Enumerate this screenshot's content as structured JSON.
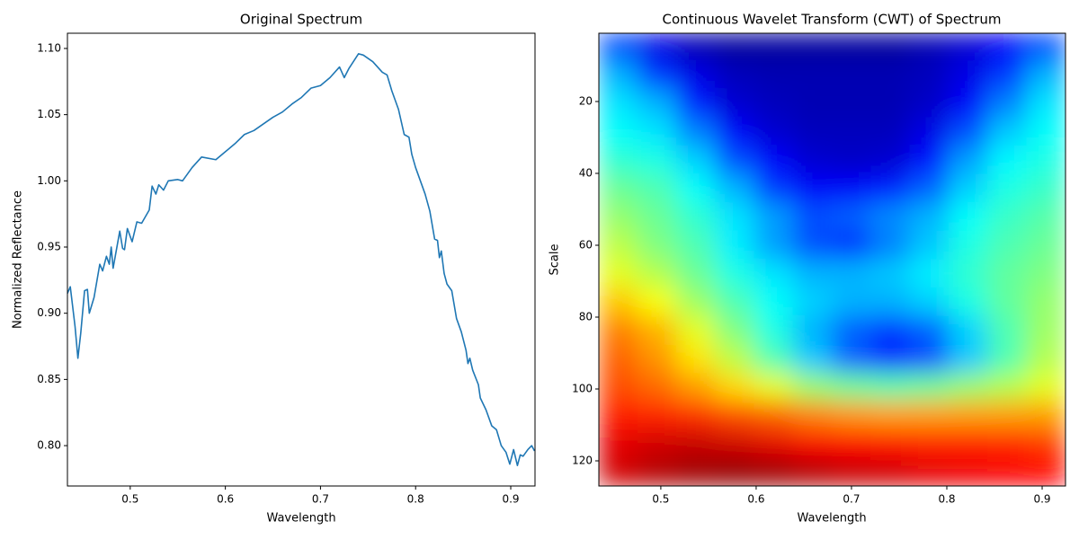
{
  "chart_data": [
    {
      "type": "line",
      "title": "Original Spectrum",
      "xlabel": "Wavelength",
      "ylabel": "Normalized Reflectance",
      "x": [
        0.434,
        0.437,
        0.442,
        0.445,
        0.448,
        0.452,
        0.455,
        0.457,
        0.462,
        0.468,
        0.471,
        0.475,
        0.478,
        0.48,
        0.482,
        0.489,
        0.492,
        0.494,
        0.497,
        0.502,
        0.507,
        0.512,
        0.52,
        0.523,
        0.527,
        0.53,
        0.535,
        0.54,
        0.55,
        0.555,
        0.565,
        0.575,
        0.59,
        0.6,
        0.61,
        0.62,
        0.63,
        0.64,
        0.65,
        0.66,
        0.67,
        0.68,
        0.69,
        0.7,
        0.71,
        0.72,
        0.725,
        0.73,
        0.74,
        0.745,
        0.755,
        0.765,
        0.77,
        0.775,
        0.782,
        0.788,
        0.793,
        0.796,
        0.8,
        0.81,
        0.815,
        0.82,
        0.823,
        0.825,
        0.827,
        0.83,
        0.833,
        0.838,
        0.843,
        0.848,
        0.853,
        0.855,
        0.857,
        0.86,
        0.866,
        0.868,
        0.874,
        0.88,
        0.885,
        0.89,
        0.895,
        0.899,
        0.903,
        0.907,
        0.91,
        0.913,
        0.918,
        0.922,
        0.925
      ],
      "series": [
        {
          "color": "#1f77b4",
          "values": [
            0.915,
            0.92,
            0.89,
            0.866,
            0.885,
            0.917,
            0.918,
            0.9,
            0.912,
            0.937,
            0.932,
            0.943,
            0.937,
            0.95,
            0.934,
            0.962,
            0.949,
            0.948,
            0.964,
            0.954,
            0.969,
            0.968,
            0.978,
            0.996,
            0.99,
            0.997,
            0.993,
            1.0,
            1.001,
            1.0,
            1.01,
            1.018,
            1.016,
            1.022,
            1.028,
            1.035,
            1.038,
            1.043,
            1.048,
            1.052,
            1.058,
            1.063,
            1.07,
            1.072,
            1.078,
            1.086,
            1.078,
            1.085,
            1.096,
            1.095,
            1.09,
            1.082,
            1.08,
            1.068,
            1.054,
            1.035,
            1.033,
            1.02,
            1.01,
            0.99,
            0.977,
            0.956,
            0.955,
            0.942,
            0.947,
            0.93,
            0.922,
            0.917,
            0.896,
            0.886,
            0.872,
            0.862,
            0.866,
            0.857,
            0.846,
            0.836,
            0.827,
            0.815,
            0.812,
            0.8,
            0.795,
            0.786,
            0.797,
            0.785,
            0.793,
            0.792,
            0.797,
            0.8,
            0.796
          ]
        }
      ],
      "xlim": [
        0.434,
        0.9255
      ],
      "ylim": [
        0.7695,
        1.1115
      ],
      "xticks": [
        0.5,
        0.6,
        0.7,
        0.8,
        0.9
      ],
      "yticks": [
        {
          "value": 0.8,
          "label": "0.80"
        },
        0.85,
        {
          "value": 0.9,
          "label": "0.90"
        },
        0.95,
        {
          "value": 1.0,
          "label": "1.00"
        },
        1.05,
        {
          "value": 1.1,
          "label": "1.10"
        }
      ]
    },
    {
      "type": "heatmap",
      "title": "Continuous Wavelet Transform (CWT) of Spectrum",
      "xlabel": "Wavelength",
      "ylabel": "Scale",
      "colormap": "jet",
      "y_inverted": true,
      "xlim": [
        0.435,
        0.9245
      ],
      "ylim": [
        1,
        127
      ],
      "xticks": [
        0.5,
        0.6,
        0.7,
        0.8,
        0.9
      ],
      "yticks": [
        20,
        40,
        60,
        80,
        100,
        120
      ],
      "z": [
        [
          0.2,
          0.1,
          0.05,
          0.03,
          0.03,
          0.03,
          0.03,
          0.03,
          0.05,
          0.08,
          0.12,
          0.2
        ],
        [
          0.3,
          0.18,
          0.1,
          0.06,
          0.05,
          0.05,
          0.05,
          0.05,
          0.06,
          0.1,
          0.18,
          0.3
        ],
        [
          0.35,
          0.3,
          0.15,
          0.08,
          0.06,
          0.05,
          0.05,
          0.05,
          0.07,
          0.12,
          0.25,
          0.35
        ],
        [
          0.38,
          0.35,
          0.25,
          0.12,
          0.08,
          0.06,
          0.06,
          0.06,
          0.1,
          0.2,
          0.32,
          0.38
        ],
        [
          0.42,
          0.4,
          0.33,
          0.2,
          0.12,
          0.08,
          0.07,
          0.08,
          0.14,
          0.28,
          0.37,
          0.4
        ],
        [
          0.48,
          0.45,
          0.38,
          0.3,
          0.18,
          0.12,
          0.12,
          0.15,
          0.22,
          0.33,
          0.4,
          0.43
        ],
        [
          0.52,
          0.48,
          0.42,
          0.35,
          0.28,
          0.2,
          0.22,
          0.26,
          0.3,
          0.38,
          0.43,
          0.46
        ],
        [
          0.56,
          0.5,
          0.45,
          0.36,
          0.28,
          0.2,
          0.17,
          0.25,
          0.32,
          0.4,
          0.45,
          0.48
        ],
        [
          0.6,
          0.55,
          0.48,
          0.4,
          0.35,
          0.3,
          0.3,
          0.32,
          0.36,
          0.42,
          0.47,
          0.5
        ],
        [
          0.68,
          0.62,
          0.53,
          0.45,
          0.38,
          0.33,
          0.3,
          0.3,
          0.33,
          0.4,
          0.47,
          0.52
        ],
        [
          0.75,
          0.7,
          0.6,
          0.5,
          0.4,
          0.3,
          0.22,
          0.18,
          0.22,
          0.33,
          0.45,
          0.53
        ],
        [
          0.78,
          0.73,
          0.65,
          0.56,
          0.45,
          0.32,
          0.22,
          0.16,
          0.2,
          0.32,
          0.45,
          0.55
        ],
        [
          0.8,
          0.77,
          0.72,
          0.66,
          0.6,
          0.52,
          0.48,
          0.46,
          0.48,
          0.52,
          0.55,
          0.6
        ],
        [
          0.85,
          0.84,
          0.83,
          0.8,
          0.78,
          0.75,
          0.73,
          0.72,
          0.72,
          0.72,
          0.72,
          0.72
        ],
        [
          0.9,
          0.92,
          0.93,
          0.92,
          0.9,
          0.88,
          0.87,
          0.86,
          0.85,
          0.85,
          0.84,
          0.82
        ],
        [
          0.92,
          0.95,
          0.97,
          0.98,
          0.97,
          0.95,
          0.93,
          0.92,
          0.9,
          0.89,
          0.88,
          0.87
        ]
      ]
    }
  ]
}
